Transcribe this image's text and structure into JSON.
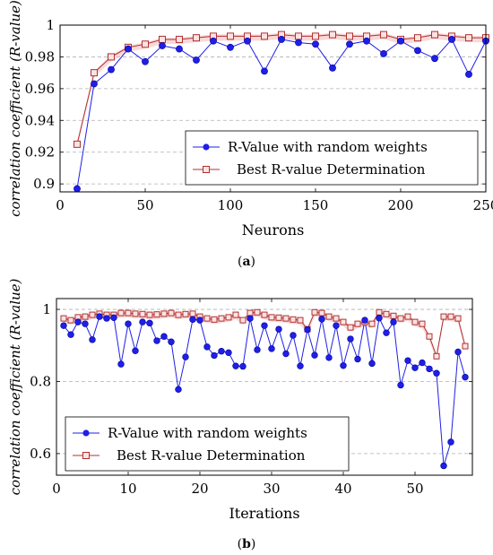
{
  "colors": {
    "random": "#1f1fe6",
    "best": "#b03030",
    "best_fill": "#f4b8b8",
    "grid": "#b0b0b0"
  },
  "chart_data": [
    {
      "type": "line",
      "caption_letter": "a",
      "xlabel": "Neurons",
      "ylabel": "correlation coefficient (R-value)",
      "xlim": [
        0,
        250
      ],
      "ylim": [
        0.895,
        1.0
      ],
      "x_ticks": [
        0,
        50,
        100,
        150,
        200,
        250
      ],
      "y_ticks": [
        0.9,
        0.92,
        0.94,
        0.96,
        0.98,
        1
      ],
      "y_tick_labels": [
        "0.9",
        "0.92",
        "0.94",
        "0.96",
        "0.98",
        "1"
      ],
      "grid": "horizontal dashed",
      "legend_position": "bottom-right",
      "x": [
        10,
        20,
        30,
        40,
        50,
        60,
        70,
        80,
        90,
        100,
        110,
        120,
        130,
        140,
        150,
        160,
        170,
        180,
        190,
        200,
        210,
        220,
        230,
        240,
        250
      ],
      "series": [
        {
          "name": "R-Value with random weights",
          "marker": "circle",
          "values": [
            0.897,
            0.963,
            0.972,
            0.985,
            0.977,
            0.987,
            0.985,
            0.978,
            0.99,
            0.986,
            0.99,
            0.971,
            0.991,
            0.989,
            0.988,
            0.973,
            0.988,
            0.99,
            0.982,
            0.99,
            0.984,
            0.979,
            0.991,
            0.969,
            0.99
          ]
        },
        {
          "name": "Best R-value Determination",
          "marker": "square",
          "values": [
            0.925,
            0.97,
            0.98,
            0.986,
            0.988,
            0.991,
            0.991,
            0.992,
            0.993,
            0.993,
            0.993,
            0.993,
            0.994,
            0.993,
            0.993,
            0.994,
            0.993,
            0.993,
            0.994,
            0.991,
            0.992,
            0.994,
            0.993,
            0.992,
            0.992
          ]
        }
      ]
    },
    {
      "type": "line",
      "caption_letter": "b",
      "xlabel": "Iterations",
      "ylabel": "correlation coefficient (R-value)",
      "xlim": [
        0,
        58
      ],
      "ylim": [
        0.54,
        1.03
      ],
      "x_ticks": [
        0,
        10,
        20,
        30,
        40,
        50
      ],
      "y_ticks": [
        0.6,
        0.8,
        1
      ],
      "y_tick_labels": [
        "0.6",
        "0.8",
        "1"
      ],
      "grid": "horizontal dashed",
      "legend_position": "bottom-left",
      "x": [
        1,
        2,
        3,
        4,
        5,
        6,
        7,
        8,
        9,
        10,
        11,
        12,
        13,
        14,
        15,
        16,
        17,
        18,
        19,
        20,
        21,
        22,
        23,
        24,
        25,
        26,
        27,
        28,
        29,
        30,
        31,
        32,
        33,
        34,
        35,
        36,
        37,
        38,
        39,
        40,
        41,
        42,
        43,
        44,
        45,
        46,
        47,
        48,
        49,
        50,
        51,
        52,
        53,
        54,
        55,
        56,
        57
      ],
      "series": [
        {
          "name": "R-Value with random weights",
          "marker": "circle",
          "values": [
            0.955,
            0.93,
            0.965,
            0.96,
            0.916,
            0.98,
            0.975,
            0.977,
            0.848,
            0.96,
            0.885,
            0.965,
            0.962,
            0.913,
            0.925,
            0.91,
            0.778,
            0.868,
            0.972,
            0.97,
            0.896,
            0.872,
            0.884,
            0.88,
            0.843,
            0.842,
            0.975,
            0.888,
            0.955,
            0.891,
            0.945,
            0.877,
            0.928,
            0.843,
            0.944,
            0.873,
            0.973,
            0.866,
            0.955,
            0.844,
            0.918,
            0.862,
            0.97,
            0.85,
            0.976,
            0.935,
            0.965,
            0.79,
            0.858,
            0.838,
            0.852,
            0.835,
            0.823,
            0.566,
            0.632,
            0.882,
            0.812
          ]
        },
        {
          "name": "Best R-value Determination",
          "marker": "square",
          "values": [
            0.975,
            0.97,
            0.978,
            0.98,
            0.985,
            0.988,
            0.985,
            0.985,
            0.99,
            0.99,
            0.988,
            0.987,
            0.985,
            0.986,
            0.988,
            0.99,
            0.985,
            0.987,
            0.988,
            0.98,
            0.975,
            0.972,
            0.975,
            0.978,
            0.985,
            0.97,
            0.99,
            0.992,
            0.985,
            0.978,
            0.977,
            0.975,
            0.972,
            0.97,
            0.945,
            0.992,
            0.99,
            0.98,
            0.975,
            0.965,
            0.95,
            0.96,
            0.965,
            0.96,
            0.992,
            0.987,
            0.982,
            0.975,
            0.98,
            0.965,
            0.96,
            0.925,
            0.87,
            0.98,
            0.98,
            0.975,
            0.898
          ]
        }
      ]
    }
  ]
}
